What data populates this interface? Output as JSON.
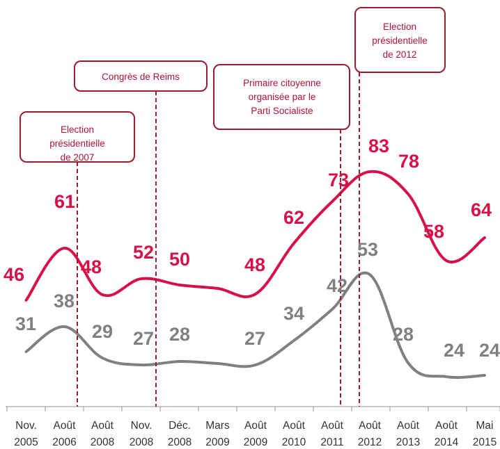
{
  "chart_data": {
    "type": "line",
    "categories": [
      [
        "Nov.",
        "2005"
      ],
      [
        "Août",
        "2006"
      ],
      [
        "Août",
        "2008"
      ],
      [
        "Nov.",
        "2008"
      ],
      [
        "Déc.",
        "2008"
      ],
      [
        "Mars",
        "2009"
      ],
      [
        "Août",
        "2009"
      ],
      [
        "Août",
        "2010"
      ],
      [
        "Août",
        "2011"
      ],
      [
        "Août",
        "2012"
      ],
      [
        "Août",
        "2013"
      ],
      [
        "Août",
        "2014"
      ],
      [
        "Mai",
        "2015"
      ]
    ],
    "series": [
      {
        "color": "#d6114a",
        "values": [
          46,
          61,
          48,
          52,
          50,
          null,
          48,
          62,
          73,
          83,
          78,
          58,
          64
        ],
        "labels": [
          "46",
          "61",
          "48",
          "52",
          "50",
          null,
          "48",
          "62",
          "73",
          "83",
          "78",
          "58",
          "64"
        ]
      },
      {
        "color": "#808080",
        "values": [
          31,
          38,
          29,
          27,
          28,
          null,
          27,
          34,
          42,
          53,
          28,
          24,
          24
        ],
        "labels": [
          "31",
          "38",
          "29",
          "27",
          "28",
          null,
          "27",
          "34",
          "42",
          "53",
          "28",
          "24",
          "24"
        ]
      }
    ],
    "annotations": [
      {
        "lines": [
          "Election",
          "présidentielle",
          "de 2007"
        ]
      },
      {
        "lines": [
          "Congrès de Reims"
        ]
      },
      {
        "lines": [
          "Primaire citoyenne",
          "organisée par le",
          "Parti Socialiste"
        ]
      },
      {
        "lines": [
          "Election",
          "présidentielle",
          "de 2012"
        ]
      }
    ],
    "ylim": [
      0,
      100
    ],
    "grid": false,
    "legend": "none"
  }
}
